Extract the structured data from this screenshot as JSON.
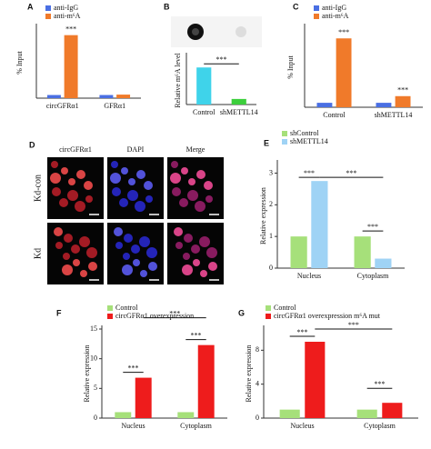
{
  "chart_data": [
    {
      "panel": "A",
      "type": "bar",
      "ylabel": "% Input",
      "categories": [
        "circGFRα1",
        "GFRα1"
      ],
      "series": [
        {
          "name": "anti-IgG",
          "color": "#4a6fe3",
          "values": [
            0.8,
            0.8
          ]
        },
        {
          "name": "anti-m⁶A",
          "color": "#f07a2a",
          "values": [
            16,
            0.9
          ]
        }
      ],
      "ylim": [
        0,
        18
      ],
      "annotations": [
        "***"
      ]
    },
    {
      "panel": "B",
      "type": "bar",
      "ylabel": "Relative m⁶A level",
      "categories": [
        "Control",
        "shMETTL14"
      ],
      "values": [
        1.0,
        0.15
      ],
      "colors": [
        "#3fd3ea",
        "#3ccf3c"
      ],
      "ylim": [
        0,
        1.3
      ],
      "annotations": [
        "***"
      ]
    },
    {
      "panel": "C",
      "type": "bar",
      "ylabel": "% Input",
      "categories": [
        "Control",
        "shMETTL14"
      ],
      "series": [
        {
          "name": "anti-IgG",
          "color": "#4a6fe3",
          "values": [
            1.0,
            1.0
          ]
        },
        {
          "name": "anti-m⁶A",
          "color": "#f07a2a",
          "values": [
            15.5,
            2.5
          ]
        }
      ],
      "ylim": [
        0,
        18
      ],
      "annotations": [
        "***",
        "***"
      ]
    },
    {
      "panel": "E",
      "type": "bar",
      "ylabel": "Relative expression",
      "categories": [
        "Nucleus",
        "Cytoplasm"
      ],
      "series": [
        {
          "name": "shControl",
          "color": "#a6e07a",
          "values": [
            1.0,
            1.0
          ]
        },
        {
          "name": "shMETTL14",
          "color": "#9fd3f5",
          "values": [
            2.75,
            0.3
          ]
        }
      ],
      "ylim": [
        0,
        3.3
      ],
      "yticks": [
        0,
        1,
        2,
        3
      ],
      "annotations": [
        "***",
        "***",
        "***"
      ]
    },
    {
      "panel": "F",
      "type": "bar",
      "ylabel": "Relative expression",
      "categories": [
        "Nucleus",
        "Cytoplasm"
      ],
      "series": [
        {
          "name": "Control",
          "color": "#a6e07a",
          "values": [
            1.0,
            1.0
          ]
        },
        {
          "name": "circGFRα1 overexpression",
          "color": "#ee1c1c",
          "values": [
            6.8,
            12.3
          ]
        }
      ],
      "ylim": [
        0,
        15
      ],
      "yticks": [
        0,
        5,
        10,
        15
      ],
      "annotations": [
        "***",
        "***",
        "***"
      ]
    },
    {
      "panel": "G",
      "type": "bar",
      "ylabel": "Relative expression",
      "categories": [
        "Nucleus",
        "Cytoplasm"
      ],
      "series": [
        {
          "name": "Control",
          "color": "#a6e07a",
          "values": [
            1.0,
            1.0
          ]
        },
        {
          "name": "circGFRα1 overexpression m⁶A mut",
          "color": "#ee1c1c",
          "values": [
            9.0,
            1.8
          ]
        }
      ],
      "ylim": [
        0,
        10.5
      ],
      "yticks": [
        0,
        4,
        8
      ],
      "annotations": [
        "***",
        "***",
        "***"
      ]
    }
  ],
  "microscopy": {
    "panel": "D",
    "columns": [
      "circGFRα1",
      "DAPI",
      "Merge"
    ],
    "rows": [
      "Kd-con",
      "Kd"
    ]
  }
}
